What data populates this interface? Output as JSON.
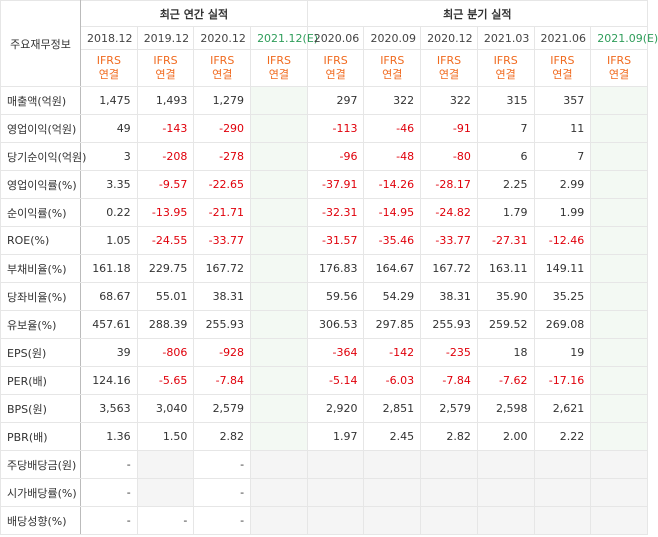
{
  "table": {
    "corner": "주요재무정보",
    "groups": [
      "최근 연간 실적",
      "최근 분기 실적"
    ],
    "columns": [
      "2018.12",
      "2019.12",
      "2020.12",
      "2021.12(E)",
      "2020.06",
      "2020.09",
      "2020.12",
      "2021.03",
      "2021.06",
      "2021.09(E)"
    ],
    "basis": [
      "IFRS\n연결",
      "IFRS\n연결",
      "IFRS\n연결",
      "IFRS\n연결",
      "IFRS\n연결",
      "IFRS\n연결",
      "IFRS\n연결",
      "IFRS\n연결",
      "IFRS\n연결",
      "IFRS\n연결"
    ],
    "rows": [
      {
        "label": "매출액(억원)",
        "cells": [
          "1,475",
          "1,493",
          "1,279",
          null,
          "297",
          "322",
          "322",
          "315",
          "357",
          null
        ]
      },
      {
        "label": "영업이익(억원)",
        "cells": [
          "49",
          "-143",
          "-290",
          null,
          "-113",
          "-46",
          "-91",
          "7",
          "11",
          null
        ]
      },
      {
        "label": "당기순이익(억원)",
        "cells": [
          "3",
          "-208",
          "-278",
          null,
          "-96",
          "-48",
          "-80",
          "6",
          "7",
          null
        ]
      },
      {
        "label": "영업이익률(%)",
        "cells": [
          "3.35",
          "-9.57",
          "-22.65",
          null,
          "-37.91",
          "-14.26",
          "-28.17",
          "2.25",
          "2.99",
          null
        ]
      },
      {
        "label": "순이익률(%)",
        "cells": [
          "0.22",
          "-13.95",
          "-21.71",
          null,
          "-32.31",
          "-14.95",
          "-24.82",
          "1.79",
          "1.99",
          null
        ]
      },
      {
        "label": "ROE(%)",
        "cells": [
          "1.05",
          "-24.55",
          "-33.77",
          null,
          "-31.57",
          "-35.46",
          "-33.77",
          "-27.31",
          "-12.46",
          null
        ]
      },
      {
        "label": "부채비율(%)",
        "cells": [
          "161.18",
          "229.75",
          "167.72",
          null,
          "176.83",
          "164.67",
          "167.72",
          "163.11",
          "149.11",
          null
        ]
      },
      {
        "label": "당좌비율(%)",
        "cells": [
          "68.67",
          "55.01",
          "38.31",
          null,
          "59.56",
          "54.29",
          "38.31",
          "35.90",
          "35.25",
          null
        ]
      },
      {
        "label": "유보율(%)",
        "cells": [
          "457.61",
          "288.39",
          "255.93",
          null,
          "306.53",
          "297.85",
          "255.93",
          "259.52",
          "269.08",
          null
        ]
      },
      {
        "label": "EPS(원)",
        "cells": [
          "39",
          "-806",
          "-928",
          null,
          "-364",
          "-142",
          "-235",
          "18",
          "19",
          null
        ]
      },
      {
        "label": "PER(배)",
        "cells": [
          "124.16",
          "-5.65",
          "-7.84",
          null,
          "-5.14",
          "-6.03",
          "-7.84",
          "-7.62",
          "-17.16",
          null
        ]
      },
      {
        "label": "BPS(원)",
        "cells": [
          "3,563",
          "3,040",
          "2,579",
          null,
          "2,920",
          "2,851",
          "2,579",
          "2,598",
          "2,621",
          null
        ]
      },
      {
        "label": "PBR(배)",
        "cells": [
          "1.36",
          "1.50",
          "2.82",
          null,
          "1.97",
          "2.45",
          "2.82",
          "2.00",
          "2.22",
          null
        ]
      },
      {
        "label": "주당배당금(원)",
        "cells": [
          "-",
          null,
          "-",
          null,
          null,
          null,
          null,
          null,
          null,
          null
        ]
      },
      {
        "label": "시가배당률(%)",
        "cells": [
          "-",
          null,
          "-",
          null,
          null,
          null,
          null,
          null,
          null,
          null
        ]
      },
      {
        "label": "배당성향(%)",
        "cells": [
          "-",
          "-",
          "-",
          null,
          null,
          null,
          null,
          null,
          null,
          null
        ]
      }
    ]
  }
}
